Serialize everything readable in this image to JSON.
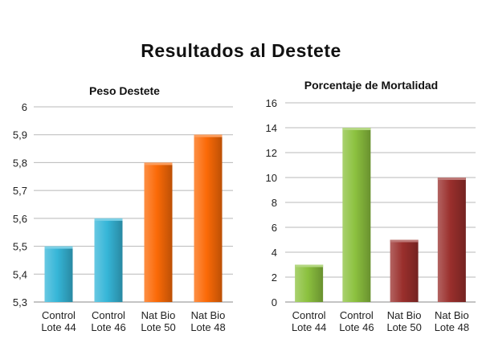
{
  "page": {
    "title": "Resultados al Destete"
  },
  "colors": {
    "blue": "#36b6d8",
    "orange": "#fb6a07",
    "green": "#8cc13f",
    "red": "#9a2f2c"
  },
  "chart_data": [
    {
      "type": "bar",
      "title": "Peso Destete",
      "categories": [
        [
          "Control",
          "Lote 44"
        ],
        [
          "Control",
          "Lote 46"
        ],
        [
          "Nat Bio",
          "Lote 50"
        ],
        [
          "Nat Bio",
          "Lote 48"
        ]
      ],
      "values": [
        5.5,
        5.6,
        5.8,
        5.9
      ],
      "bar_colors": [
        "#36b6d8",
        "#36b6d8",
        "#fb6a07",
        "#fb6a07"
      ],
      "ylim": [
        5.3,
        6
      ],
      "yticks": [
        "5,3",
        "5,4",
        "5,5",
        "5,6",
        "5,7",
        "5,8",
        "5,9",
        "6"
      ],
      "grid": true,
      "legend": "none"
    },
    {
      "type": "bar",
      "title": "Porcentaje de Mortalidad",
      "categories": [
        [
          "Control",
          "Lote 44"
        ],
        [
          "Control",
          "Lote 46"
        ],
        [
          "Nat Bio",
          "Lote 50"
        ],
        [
          "Nat Bio",
          "Lote 48"
        ]
      ],
      "values": [
        3,
        14,
        5,
        10
      ],
      "bar_colors": [
        "#8cc13f",
        "#8cc13f",
        "#9a2f2c",
        "#9a2f2c"
      ],
      "ylim": [
        0,
        16
      ],
      "yticks": [
        "0",
        "2",
        "4",
        "6",
        "8",
        "10",
        "12",
        "14",
        "16"
      ],
      "grid": true,
      "legend": "none"
    }
  ]
}
